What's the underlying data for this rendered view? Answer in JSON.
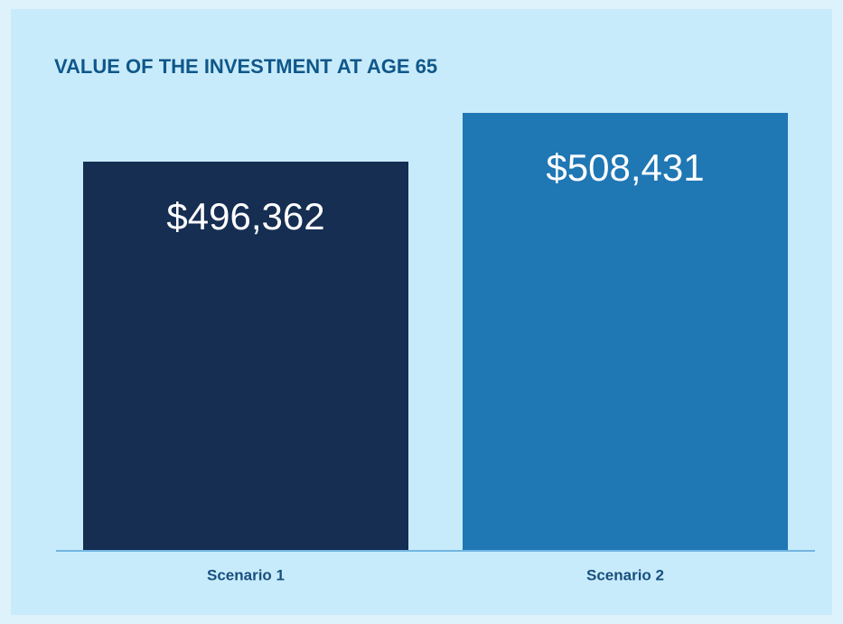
{
  "chart_data": {
    "type": "bar",
    "title": "VALUE OF THE INVESTMENT AT AGE 65",
    "categories": [
      "Scenario 1",
      "Scenario 2"
    ],
    "values": [
      496362,
      508431
    ],
    "value_labels": [
      "$496,362",
      "$508,431"
    ],
    "colors": [
      "#162e52",
      "#1f77b4"
    ],
    "ylim": [
      400000,
      510000
    ]
  }
}
